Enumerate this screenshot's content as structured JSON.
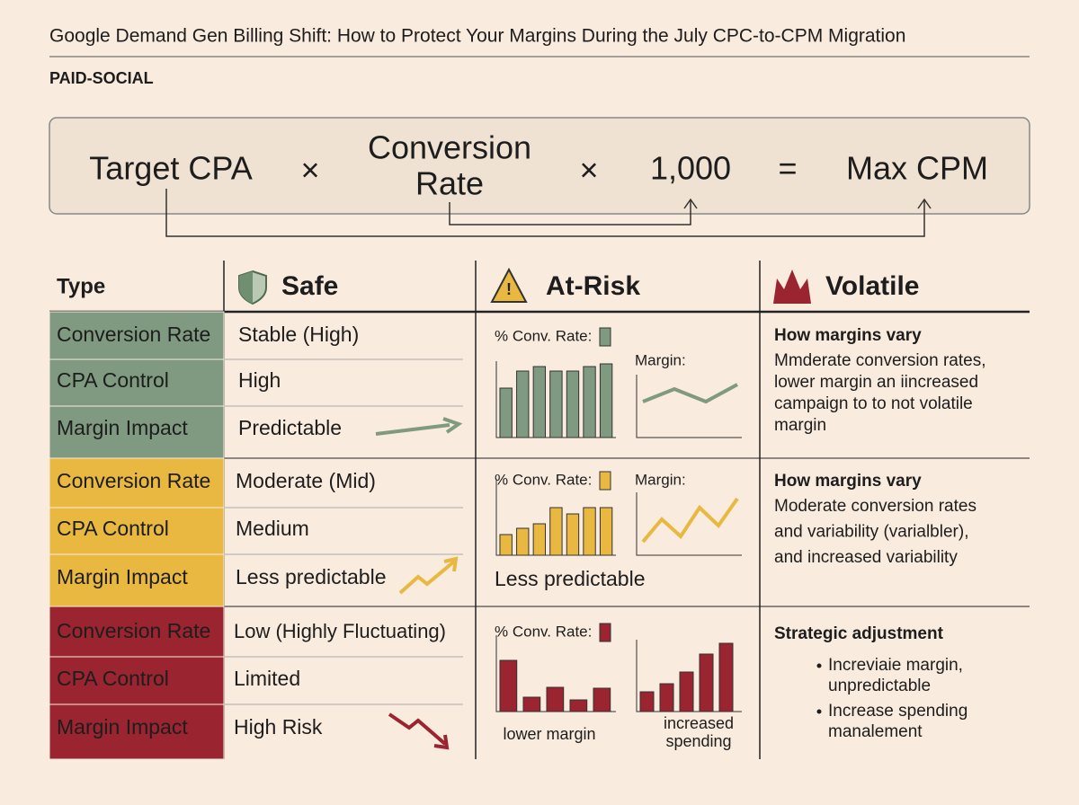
{
  "header": {
    "title": "Google Demand Gen Billing Shift: How to Protect Your Margins During the July CPC-to-CPM Migration",
    "tag": "PAID-SOCIAL"
  },
  "formula": {
    "term1": "Target CPA",
    "op1": "×",
    "term2_line1": "Conversion",
    "term2_line2": "Rate",
    "op2": "×",
    "term3": "1,000",
    "eq": "=",
    "result": "Max CPM"
  },
  "table": {
    "columns": [
      "Type",
      "Safe",
      "At-Risk",
      "Volatile"
    ],
    "groups": [
      {
        "rows": [
          {
            "type": "Conversion Rate",
            "safe": "Stable (High)"
          },
          {
            "type": "CPA Control",
            "safe": "High"
          },
          {
            "type": "Margin Impact",
            "safe": "Predictable"
          }
        ],
        "at_risk": {
          "conv_label": "% Conv. Rate:",
          "conv_bars": [
            55,
            74,
            79,
            74,
            74,
            79,
            82
          ],
          "margin_label": "Margin:",
          "margin_line": [
            40,
            54,
            40,
            59
          ]
        },
        "volatile": {
          "heading": "How margins vary",
          "lines": [
            "Mmderate conversion rates,",
            "lower margin an iincreased",
            "campaign to to not volatile",
            "margin"
          ]
        }
      },
      {
        "rows": [
          {
            "type": "Conversion Rate",
            "safe": "Moderate (Mid)"
          },
          {
            "type": "CPA Control",
            "safe": "Medium"
          },
          {
            "type": "Margin Impact",
            "safe": "Less predictable"
          }
        ],
        "at_risk": {
          "conv_label": "% Conv. Rate:",
          "conv_bars": [
            23,
            30,
            35,
            53,
            46,
            53,
            53
          ],
          "margin_label": "Margin:",
          "margin_line": [
            15,
            40,
            21,
            53,
            33,
            63
          ],
          "caption": "Less predictable"
        },
        "volatile": {
          "heading": "How margins vary",
          "lines": [
            "Moderate conversion rates",
            "and variability (varialbler),",
            "and increased variability"
          ]
        }
      },
      {
        "rows": [
          {
            "type": "Conversion Rate",
            "safe": "Low (Highly Fluctuating)"
          },
          {
            "type": "CPA Control",
            "safe": "Limited"
          },
          {
            "type": "Margin Impact",
            "safe": "High Risk"
          }
        ],
        "at_risk": {
          "conv_label": "% Conv. Rate:",
          "conv_bars": [
            57,
            16,
            27,
            13,
            26
          ],
          "margin_bars": [
            22,
            31,
            44,
            64,
            76
          ],
          "left_caption": "lower margin",
          "right_caption": [
            "increased",
            "spending"
          ]
        },
        "volatile": {
          "heading": "Strategic adjustment",
          "bullets": [
            [
              "Increviaie margin,",
              "unpredictable"
            ],
            [
              "Increase spending",
              "manalement"
            ]
          ]
        }
      }
    ]
  }
}
